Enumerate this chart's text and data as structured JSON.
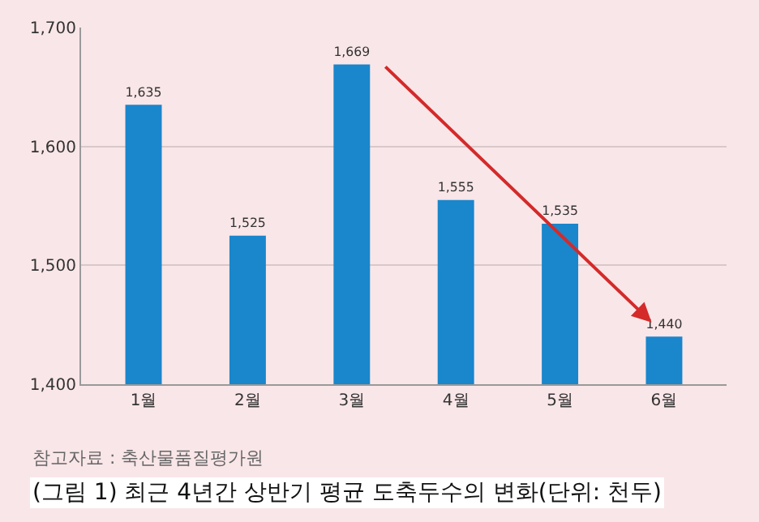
{
  "chart_data": {
    "type": "bar",
    "title": "(그림 1) 최근 4년간 상반기 평균 도축두수의 변화(단위: 천두)",
    "categories": [
      "1월",
      "2월",
      "3월",
      "4월",
      "5월",
      "6월"
    ],
    "values": [
      1635,
      1525,
      1669,
      1555,
      1535,
      1440
    ],
    "color": "#1a86cc",
    "ylim": [
      1400,
      1700
    ],
    "yticks": [
      {
        "value": 1400,
        "label": "1,400"
      },
      {
        "value": 1500,
        "label": "1,500"
      },
      {
        "value": 1600,
        "label": "1,600"
      },
      {
        "value": 1700,
        "label": "1,700"
      }
    ],
    "value_labels": [
      "1,635",
      "1,525",
      "1,669",
      "1,555",
      "1,535",
      "1,440"
    ],
    "grid": "y",
    "annotations": [
      "참고자료 : 축산물품질평가원"
    ]
  }
}
